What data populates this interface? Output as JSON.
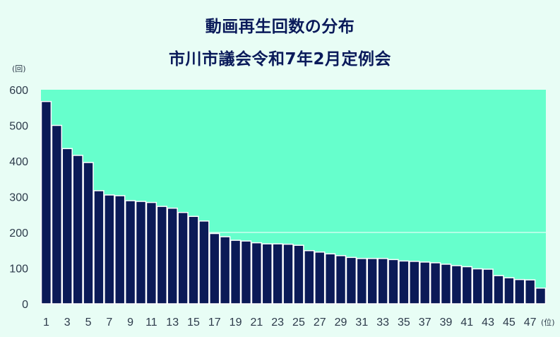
{
  "title": "動画再生回数の分布",
  "subtitle": "市川市議会令和7年2月定例会",
  "colors": {
    "background": "#e8fdf5",
    "plot_area": "#66ffcc",
    "bar": "#0b1a57",
    "bar_edge": "#ffffff",
    "title": "#0a1a5a"
  },
  "chart_data": {
    "type": "bar",
    "title": "動画再生回数の分布",
    "subtitle": "市川市議会令和7年2月定例会",
    "y_unit_label": "(回)",
    "x_unit_label": "(位)",
    "ylim": [
      0,
      600
    ],
    "y_ticks": [
      0,
      100,
      200,
      300,
      400,
      500,
      600
    ],
    "grid": "horizontal at 200",
    "categories": [
      1,
      2,
      3,
      4,
      5,
      6,
      7,
      8,
      9,
      10,
      11,
      12,
      13,
      14,
      15,
      16,
      17,
      18,
      19,
      20,
      21,
      22,
      23,
      24,
      25,
      26,
      27,
      28,
      29,
      30,
      31,
      32,
      33,
      34,
      35,
      36,
      37,
      38,
      39,
      40,
      41,
      42,
      43,
      44,
      45,
      46,
      47,
      48
    ],
    "x_tick_labels": [
      1,
      3,
      5,
      7,
      9,
      11,
      13,
      15,
      17,
      19,
      21,
      23,
      25,
      27,
      29,
      31,
      33,
      35,
      37,
      39,
      41,
      43,
      45,
      47
    ],
    "values": [
      567,
      500,
      435,
      416,
      396,
      317,
      305,
      303,
      289,
      287,
      284,
      273,
      268,
      256,
      245,
      232,
      197,
      188,
      178,
      176,
      171,
      168,
      168,
      167,
      164,
      149,
      145,
      140,
      135,
      130,
      127,
      127,
      127,
      124,
      120,
      119,
      117,
      115,
      111,
      107,
      104,
      98,
      97,
      79,
      73,
      68,
      67,
      44
    ]
  }
}
